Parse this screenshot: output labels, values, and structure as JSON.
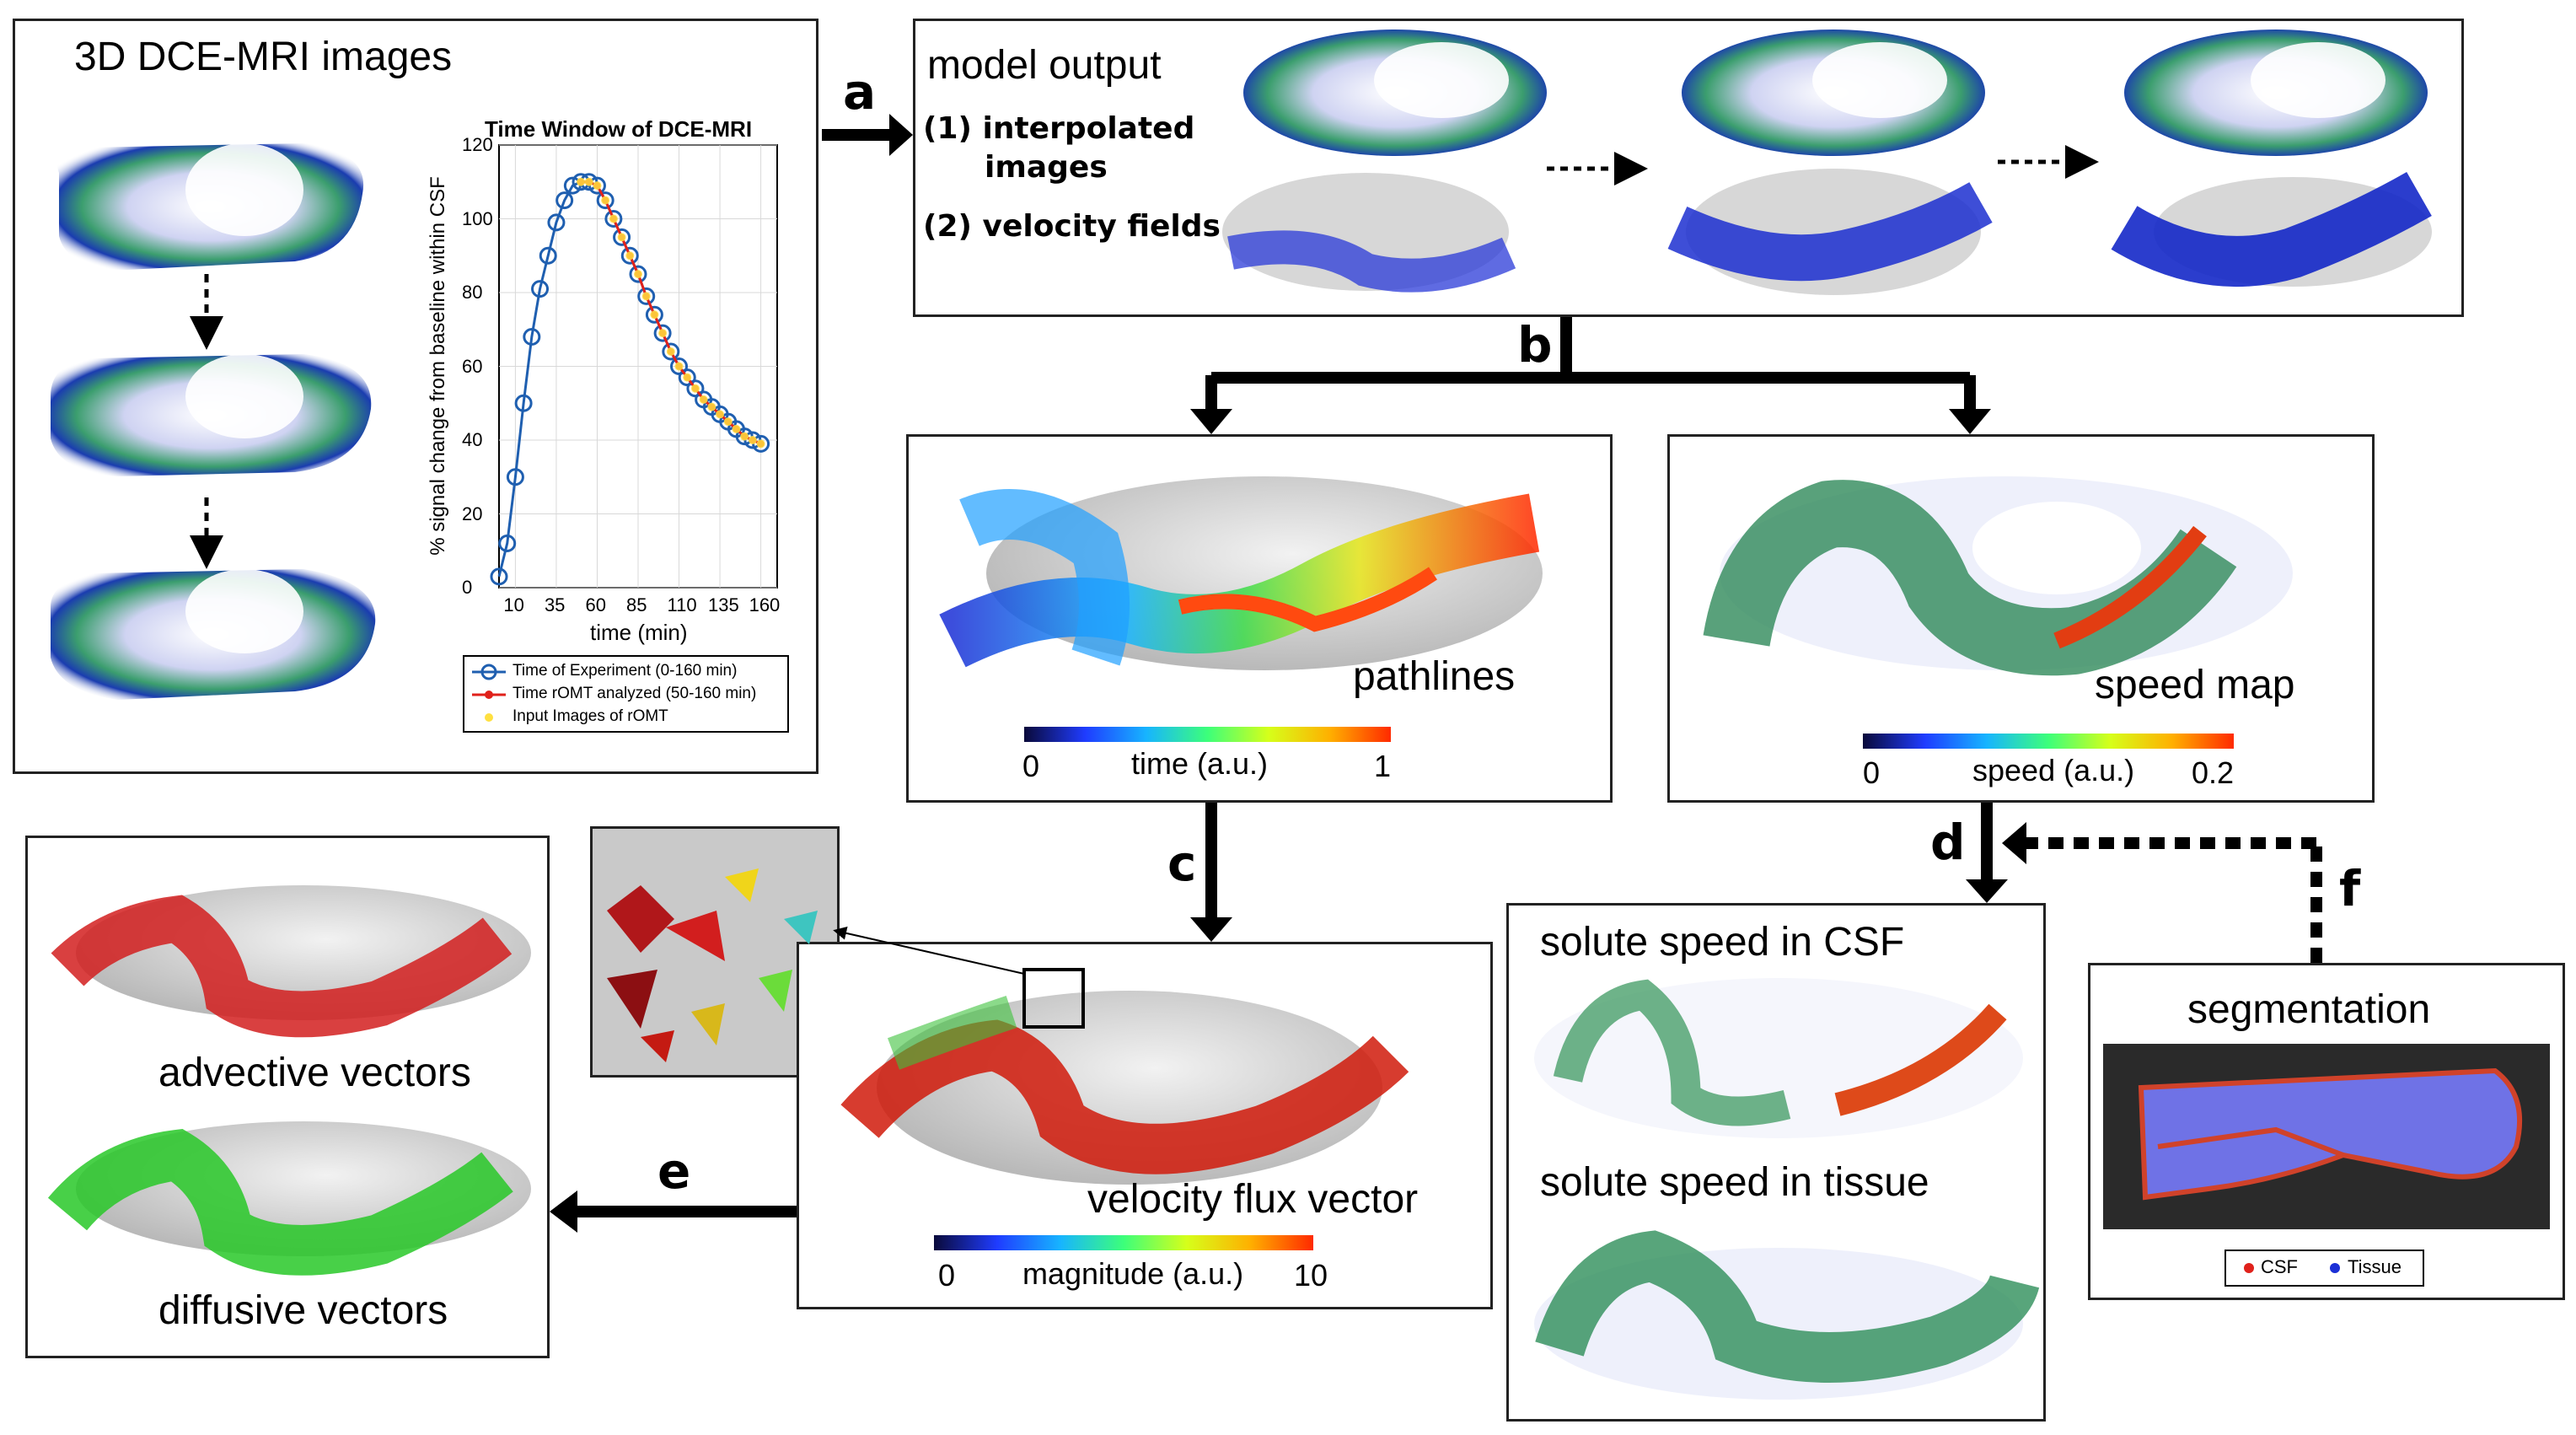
{
  "panel_dce": {
    "title": "3D DCE-MRI images"
  },
  "chart": {
    "title": "Time Window of DCE-MRI",
    "ylabel": "% signal change from baseline within CSF",
    "xlabel": "time (min)",
    "legend": [
      "Time of Experiment (0-160 min)",
      "Time rOMT analyzed (50-160 min)",
      "Input Images of rOMT"
    ],
    "xticks": [
      "10",
      "35",
      "60",
      "85",
      "110",
      "135",
      "160"
    ],
    "yticks": [
      "0",
      "20",
      "40",
      "60",
      "80",
      "100",
      "120"
    ]
  },
  "chart_data": {
    "type": "line",
    "title": "Time Window of DCE-MRI",
    "xlabel": "time (min)",
    "ylabel": "% signal change from baseline within CSF",
    "xlim": [
      0,
      170
    ],
    "ylim": [
      0,
      120
    ],
    "series": [
      {
        "name": "Time of Experiment (0-160 min)",
        "x": [
          0,
          5,
          10,
          15,
          20,
          25,
          30,
          35,
          40,
          45,
          50,
          55,
          60,
          65,
          70,
          75,
          80,
          85,
          90,
          95,
          100,
          105,
          110,
          115,
          120,
          125,
          130,
          135,
          140,
          145,
          150,
          155,
          160
        ],
        "y": [
          3,
          12,
          30,
          50,
          68,
          81,
          90,
          99,
          105,
          109,
          110,
          110,
          109,
          105,
          100,
          95,
          90,
          85,
          79,
          74,
          69,
          64,
          60,
          57,
          54,
          51,
          49,
          47,
          45,
          43,
          41,
          40,
          39
        ]
      },
      {
        "name": "Time rOMT analyzed (50-160 min)",
        "x": [
          50,
          55,
          60,
          65,
          70,
          75,
          80,
          85,
          90,
          95,
          100,
          105,
          110,
          115,
          120,
          125,
          130,
          135,
          140,
          145,
          150,
          155,
          160
        ],
        "y": [
          110,
          110,
          109,
          105,
          100,
          95,
          90,
          85,
          79,
          74,
          69,
          64,
          60,
          57,
          54,
          51,
          49,
          47,
          45,
          43,
          41,
          40,
          39
        ]
      },
      {
        "name": "Input Images of rOMT",
        "x": [
          50,
          55,
          60,
          65,
          70,
          75,
          80,
          85,
          90,
          95,
          100,
          105,
          110,
          115,
          120,
          125,
          130,
          135,
          140,
          145,
          150,
          155,
          160
        ],
        "y": [
          110,
          110,
          109,
          105,
          100,
          95,
          90,
          85,
          79,
          74,
          69,
          64,
          60,
          57,
          54,
          51,
          49,
          47,
          45,
          43,
          41,
          40,
          39
        ]
      }
    ],
    "colors": {
      "experiment": "#1f5fb0",
      "romt": "#e0211b",
      "input": "#ffe040"
    }
  },
  "arrow_labels": {
    "a": "a",
    "b": "b",
    "c": "c",
    "d": "d",
    "e": "e",
    "f": "f"
  },
  "panel_model": {
    "title": "model output",
    "item1": "(1) interpolated",
    "item1b": "images",
    "item2": "(2) velocity fields"
  },
  "panel_pathlines": {
    "label": "pathlines",
    "cb_min": "0",
    "cb_title": "time (a.u.)",
    "cb_max": "1"
  },
  "panel_speed": {
    "label": "speed map",
    "cb_min": "0",
    "cb_title": "speed (a.u.)",
    "cb_max": "0.2"
  },
  "panel_flux": {
    "label": "velocity flux vector",
    "cb_min": "0",
    "cb_title": "magnitude (a.u.)",
    "cb_max": "10"
  },
  "panel_vectors": {
    "advective": "advective vectors",
    "diffusive": "diffusive vectors"
  },
  "panel_solute": {
    "csf": "solute speed in CSF",
    "tissue": "solute speed in tissue"
  },
  "panel_seg": {
    "title": "segmentation",
    "legend_csf": "CSF",
    "legend_tissue": "Tissue"
  }
}
